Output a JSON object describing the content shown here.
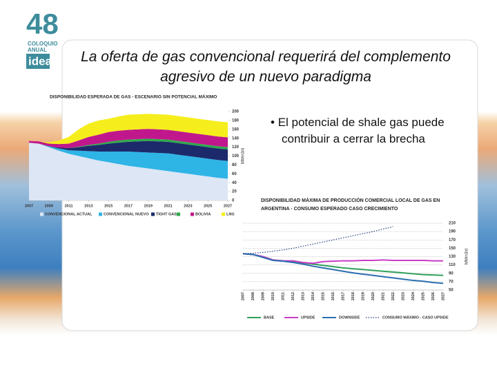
{
  "logo": {
    "number": "48",
    "line1": "COLOQUIO",
    "line2": "ANUAL",
    "line3": "idea"
  },
  "title": "La oferta de gas convencional requerirá del complemento agresivo de un nuevo paradigma",
  "bullet": "El potencial de shale gas puede contribuir a cerrar la brecha",
  "chart_data": [
    {
      "type": "area",
      "title": "DISPONIBILIDAD ESPERADA DE GAS - ESCENARIO SIN POTENCIAL MÁXIMO",
      "y_label": "MMm3/d",
      "x": [
        2007,
        2008,
        2009,
        2010,
        2011,
        2012,
        2013,
        2014,
        2015,
        2016,
        2017,
        2018,
        2019,
        2020,
        2021,
        2022,
        2023,
        2024,
        2025,
        2026,
        2027
      ],
      "xlim": [
        2007,
        2027
      ],
      "xticks": [
        2007,
        2009,
        2011,
        2013,
        2015,
        2017,
        2019,
        2021,
        2023,
        2025,
        2027
      ],
      "ylim": [
        0,
        200
      ],
      "yticks": [
        0,
        20,
        40,
        60,
        80,
        100,
        120,
        140,
        160,
        180,
        200
      ],
      "stacked": true,
      "grid": false,
      "series": [
        {
          "name": "CONVENCIONAL ACTUAL",
          "color": "#dce6f5",
          "values": [
            130,
            128,
            120,
            112,
            105,
            100,
            95,
            90,
            86,
            82,
            78,
            75,
            72,
            69,
            66,
            63,
            60,
            57,
            54,
            51,
            49
          ]
        },
        {
          "name": "CONVENCIONAL NUEVO",
          "color": "#2fb4e6",
          "values": [
            0,
            0,
            2,
            5,
            8,
            12,
            16,
            20,
            24,
            28,
            32,
            34,
            36,
            38,
            40,
            40,
            40,
            40,
            40,
            40,
            40
          ]
        },
        {
          "name": "TIGHT GAS",
          "color": "#1c2a6b",
          "values": [
            0,
            0,
            0,
            2,
            5,
            8,
            12,
            15,
            18,
            20,
            22,
            24,
            26,
            26,
            26,
            26,
            26,
            26,
            26,
            26,
            26
          ]
        },
        {
          "name": null,
          "color": "#2eaa4a",
          "values": [
            0,
            0,
            0,
            0,
            0,
            1,
            2,
            3,
            4,
            5,
            5,
            5,
            5,
            5,
            5,
            5,
            5,
            5,
            5,
            5,
            5
          ]
        },
        {
          "name": "BOLIVIA",
          "color": "#c0188c",
          "values": [
            4,
            5,
            6,
            8,
            10,
            14,
            18,
            20,
            22,
            22,
            22,
            22,
            22,
            22,
            22,
            22,
            22,
            22,
            22,
            22,
            22
          ]
        },
        {
          "name": "LNG",
          "color": "#f5ee1c",
          "values": [
            0,
            0,
            3,
            8,
            15,
            25,
            30,
            32,
            30,
            32,
            34,
            34,
            34,
            34,
            34,
            34,
            34,
            34,
            34,
            34,
            34
          ]
        }
      ]
    },
    {
      "type": "line",
      "title": "DISPONIBILIDAD MÁXIMA DE PRODUCCIÓN COMERCIAL LOCAL DE GAS EN ARGENTINA - CONSUMO ESPERADO CASO CRECIMIENTO",
      "y_label": "MMm3/d",
      "x": [
        2007,
        2008,
        2009,
        2010,
        2011,
        2012,
        2013,
        2014,
        2015,
        2016,
        2017,
        2018,
        2019,
        2020,
        2021,
        2022,
        2023,
        2024,
        2025,
        2026,
        2027
      ],
      "xlim": [
        2007,
        2027
      ],
      "xticks": [
        2007,
        2008,
        2009,
        2010,
        2011,
        2012,
        2013,
        2014,
        2015,
        2016,
        2017,
        2018,
        2019,
        2020,
        2021,
        2022,
        2023,
        2024,
        2025,
        2026,
        2027
      ],
      "ylim": [
        50,
        210
      ],
      "yticks": [
        50,
        70,
        90,
        110,
        130,
        150,
        170,
        190,
        210
      ],
      "grid": true,
      "series": [
        {
          "name": "BASE",
          "color": "#2ea05a",
          "dashed": false,
          "values": [
            137,
            135,
            130,
            122,
            120,
            118,
            115,
            112,
            109,
            106,
            103,
            101,
            99,
            97,
            95,
            93,
            91,
            89,
            87,
            86,
            85
          ]
        },
        {
          "name": "UPSIDE",
          "color": "#c83cc8",
          "dashed": false,
          "values": [
            137,
            135,
            130,
            122,
            120,
            120,
            116,
            114,
            118,
            119,
            120,
            120,
            121,
            121,
            122,
            121,
            121,
            121,
            121,
            120,
            120
          ]
        },
        {
          "name": "DOWNSIDE",
          "color": "#2a6db0",
          "dashed": false,
          "values": [
            137,
            135,
            128,
            121,
            119,
            116,
            112,
            107,
            103,
            99,
            95,
            91,
            88,
            85,
            82,
            79,
            76,
            73,
            71,
            68,
            66
          ]
        },
        {
          "name": "CONSUMO MÁXIMO - CASO UPSIDE",
          "color": "#1f3f7a",
          "dashed": true,
          "values": [
            137,
            138,
            140,
            143,
            146,
            150,
            155,
            160,
            165,
            170,
            175,
            180,
            185,
            190,
            196,
            202,
            null,
            null,
            null,
            null,
            null
          ]
        }
      ]
    }
  ]
}
